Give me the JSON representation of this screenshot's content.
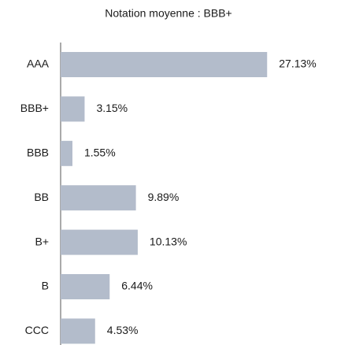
{
  "chart_data": {
    "type": "bar",
    "orientation": "horizontal",
    "title": "Notation moyenne : BBB+",
    "categories": [
      "AAA",
      "BBB+",
      "BBB",
      "BB",
      "B+",
      "B",
      "CCC"
    ],
    "values": [
      27.13,
      3.15,
      1.55,
      9.89,
      10.13,
      6.44,
      4.53
    ],
    "value_labels": [
      "27.13%",
      "3.15%",
      "1.55%",
      "9.89%",
      "10.13%",
      "6.44%",
      "4.53%"
    ],
    "color": "#b3bccb",
    "xlim": [
      0,
      30
    ]
  }
}
